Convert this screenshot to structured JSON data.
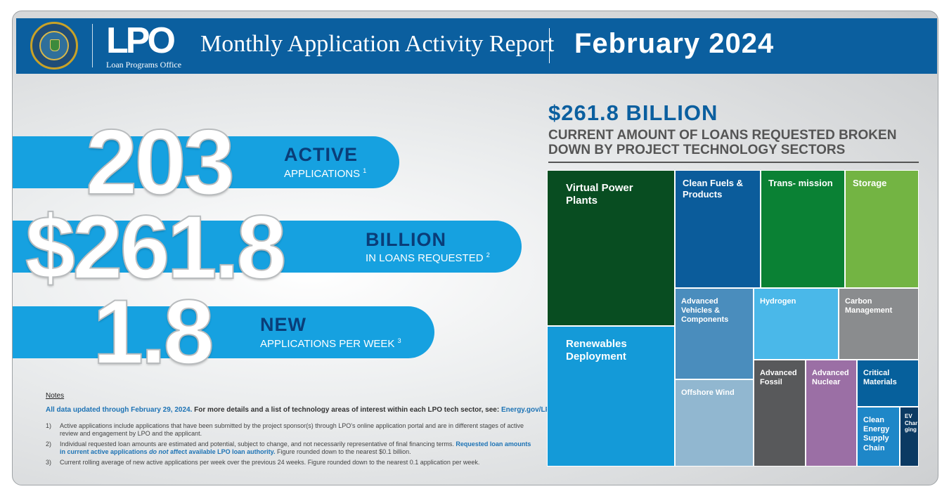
{
  "header": {
    "org_short": "LPO",
    "org_full": "Loan Programs Office",
    "report_title": "Monthly Application Activity Report",
    "report_date": "February 2024"
  },
  "stats": [
    {
      "number": "203",
      "headline": "ACTIVE",
      "label": "APPLICATIONS",
      "note": "1"
    },
    {
      "number": "$261.8",
      "headline": "BILLION",
      "label": "IN LOANS REQUESTED",
      "note": "2"
    },
    {
      "number": "1.8",
      "headline": "NEW",
      "label": "APPLICATIONS PER WEEK",
      "note": "3"
    }
  ],
  "notes": {
    "title": "Notes",
    "lead_blue": "All data updated through February 29, 2024.",
    "lead_black": "For more details and a list of technology areas of interest within each LPO tech sector, see:",
    "lead_link": "Energy.gov/LPO/MAAR",
    "items": [
      {
        "num": "1)",
        "text": "Active applications include applications that have been submitted by the project sponsor(s) through LPO's online application portal and are in different stages of active review and engagement by LPO and the applicant."
      },
      {
        "num": "2)",
        "text_a": "Individual requested loan amounts are estimated and potential, subject to change, and not necessarily representative of final financing terms.",
        "text_hl_a": "Requested loan amounts in current active applications",
        "text_hl_em": "do not",
        "text_hl_b": "affect available LPO loan authority.",
        "text_b": "Figure rounded down to the nearest $0.1 billion."
      },
      {
        "num": "3)",
        "text": "Current rolling average of new active applications per week over the previous 24 weeks. Figure rounded down to the nearest 0.1 application per week."
      }
    ]
  },
  "breakdown": {
    "amount": "$261.8 BILLION",
    "subtitle": "CURRENT AMOUNT OF LOANS REQUESTED BROKEN DOWN BY PROJECT TECHNOLOGY SECTORS"
  },
  "sectors": [
    {
      "label": "Virtual Power Plants",
      "color": "#084d21"
    },
    {
      "label": "Renewables Deployment",
      "color": "#149ad8"
    },
    {
      "label": "Clean Fuels & Products",
      "color": "#0b5c9b"
    },
    {
      "label": "Trans- mission",
      "color": "#0a8134"
    },
    {
      "label": "Storage",
      "color": "#73b443"
    },
    {
      "label": "Advanced Vehicles & Components",
      "color": "#4a8dbd"
    },
    {
      "label": "Hydrogen",
      "color": "#4ab8e9"
    },
    {
      "label": "Carbon Management",
      "color": "#8a8c8e"
    },
    {
      "label": "Offshore Wind",
      "color": "#91b7d0"
    },
    {
      "label": "Advanced Fossil",
      "color": "#58595b"
    },
    {
      "label": "Advanced Nuclear",
      "color": "#9b6fa5"
    },
    {
      "label": "Critical Materials",
      "color": "#06609c"
    },
    {
      "label": "Clean Energy Supply Chain",
      "color": "#1e87c8"
    },
    {
      "label": "EV Char ging",
      "color": "#0b3a63"
    }
  ]
}
